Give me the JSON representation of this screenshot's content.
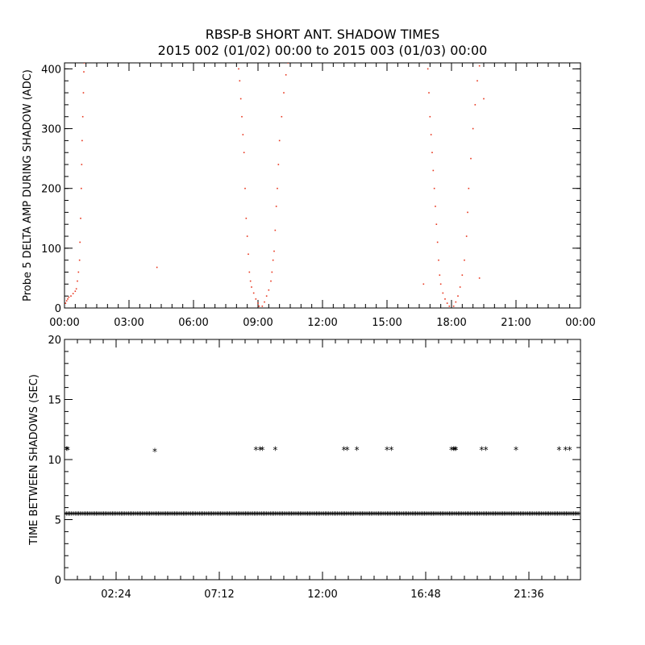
{
  "title": "RBSP-B SHORT ANT. SHADOW TIMES",
  "subtitle": "2015 002 (01/02) 00:00 to 2015 003 (01/03) 00:00",
  "colors": {
    "points": "#e8341c",
    "axis": "#000000",
    "background": "#ffffff"
  },
  "chart_data": [
    {
      "type": "scatter",
      "ylabel": "Probe 5 DELTA AMP DURING SHADOW (ADC)",
      "xlabel": "",
      "xunit": "hours",
      "xlim": [
        0,
        24
      ],
      "ylim": [
        0,
        410
      ],
      "xticks": [
        0,
        3,
        6,
        9,
        12,
        15,
        18,
        21,
        24
      ],
      "xticklabels": [
        "00:00",
        "03:00",
        "06:00",
        "09:00",
        "12:00",
        "15:00",
        "18:00",
        "21:00",
        "00:00"
      ],
      "yticks": [
        0,
        100,
        200,
        300,
        400
      ],
      "yticklabels": [
        "0",
        "100",
        "200",
        "300",
        "400"
      ],
      "series": [
        {
          "color": "#e8341c",
          "points": [
            [
              0.05,
              8
            ],
            [
              0.1,
              12
            ],
            [
              0.15,
              15
            ],
            [
              0.2,
              18
            ],
            [
              0.3,
              20
            ],
            [
              0.4,
              24
            ],
            [
              0.5,
              28
            ],
            [
              0.55,
              32
            ],
            [
              0.6,
              45
            ],
            [
              0.65,
              60
            ],
            [
              0.7,
              80
            ],
            [
              0.72,
              110
            ],
            [
              0.75,
              150
            ],
            [
              0.78,
              200
            ],
            [
              0.8,
              240
            ],
            [
              0.82,
              280
            ],
            [
              0.85,
              320
            ],
            [
              0.88,
              360
            ],
            [
              0.9,
              395
            ],
            [
              0.92,
              410
            ],
            [
              4.3,
              68
            ],
            [
              8.1,
              400
            ],
            [
              8.15,
              380
            ],
            [
              8.2,
              350
            ],
            [
              8.25,
              320
            ],
            [
              8.3,
              290
            ],
            [
              8.35,
              260
            ],
            [
              8.4,
              200
            ],
            [
              8.45,
              150
            ],
            [
              8.5,
              120
            ],
            [
              8.55,
              90
            ],
            [
              8.6,
              60
            ],
            [
              8.65,
              45
            ],
            [
              8.7,
              35
            ],
            [
              8.8,
              25
            ],
            [
              8.9,
              15
            ],
            [
              9.0,
              8
            ],
            [
              9.05,
              3
            ],
            [
              9.2,
              3
            ],
            [
              9.3,
              10
            ],
            [
              9.4,
              20
            ],
            [
              9.5,
              30
            ],
            [
              9.6,
              45
            ],
            [
              9.65,
              60
            ],
            [
              9.7,
              80
            ],
            [
              9.75,
              95
            ],
            [
              9.8,
              130
            ],
            [
              9.85,
              170
            ],
            [
              9.9,
              200
            ],
            [
              9.95,
              240
            ],
            [
              10.0,
              280
            ],
            [
              10.1,
              320
            ],
            [
              10.2,
              360
            ],
            [
              10.3,
              390
            ],
            [
              10.4,
              410
            ],
            [
              16.7,
              40
            ],
            [
              16.9,
              400
            ],
            [
              16.95,
              360
            ],
            [
              17.0,
              320
            ],
            [
              17.05,
              290
            ],
            [
              17.1,
              260
            ],
            [
              17.15,
              230
            ],
            [
              17.2,
              200
            ],
            [
              17.25,
              170
            ],
            [
              17.3,
              140
            ],
            [
              17.35,
              110
            ],
            [
              17.4,
              80
            ],
            [
              17.45,
              55
            ],
            [
              17.5,
              40
            ],
            [
              17.6,
              25
            ],
            [
              17.7,
              15
            ],
            [
              17.8,
              8
            ],
            [
              17.9,
              3
            ],
            [
              18.1,
              3
            ],
            [
              18.2,
              10
            ],
            [
              18.3,
              20
            ],
            [
              18.4,
              35
            ],
            [
              18.5,
              55
            ],
            [
              18.6,
              80
            ],
            [
              18.7,
              120
            ],
            [
              18.75,
              160
            ],
            [
              18.8,
              200
            ],
            [
              18.9,
              250
            ],
            [
              19.0,
              300
            ],
            [
              19.1,
              340
            ],
            [
              19.2,
              380
            ],
            [
              19.3,
              405
            ],
            [
              19.5,
              350
            ],
            [
              19.3,
              50
            ]
          ]
        }
      ]
    },
    {
      "type": "scatter",
      "ylabel": "TIME BETWEEN SHADOWS (SEC)",
      "xlabel": "",
      "xunit": "hours",
      "xlim": [
        0,
        24
      ],
      "ylim": [
        0,
        20
      ],
      "xticks": [
        2.4,
        7.2,
        12.0,
        16.8,
        21.6
      ],
      "xticklabels": [
        "02:24",
        "07:12",
        "12:00",
        "16:48",
        "21:36"
      ],
      "yticks": [
        0,
        5,
        10,
        15,
        20
      ],
      "yticklabels": [
        "0",
        "5",
        "10",
        "15",
        "20"
      ],
      "marker": "*",
      "baseline_band": {
        "value": 5.45,
        "from": 0.0,
        "to": 24.0
      },
      "series": [
        {
          "color": "#000000",
          "points": [
            [
              0.1,
              10.85
            ],
            [
              0.15,
              10.85
            ],
            [
              4.2,
              10.7
            ],
            [
              8.9,
              10.85
            ],
            [
              9.1,
              10.85
            ],
            [
              9.2,
              10.85
            ],
            [
              9.8,
              10.85
            ],
            [
              13.0,
              10.85
            ],
            [
              13.15,
              10.85
            ],
            [
              13.6,
              10.85
            ],
            [
              15.0,
              10.85
            ],
            [
              15.2,
              10.85
            ],
            [
              18.0,
              10.85
            ],
            [
              18.1,
              10.85
            ],
            [
              18.15,
              10.85
            ],
            [
              18.2,
              10.85
            ],
            [
              19.4,
              10.85
            ],
            [
              19.6,
              10.85
            ],
            [
              21.0,
              10.85
            ],
            [
              23.0,
              10.85
            ],
            [
              23.3,
              10.85
            ],
            [
              23.5,
              10.85
            ]
          ]
        }
      ]
    }
  ]
}
